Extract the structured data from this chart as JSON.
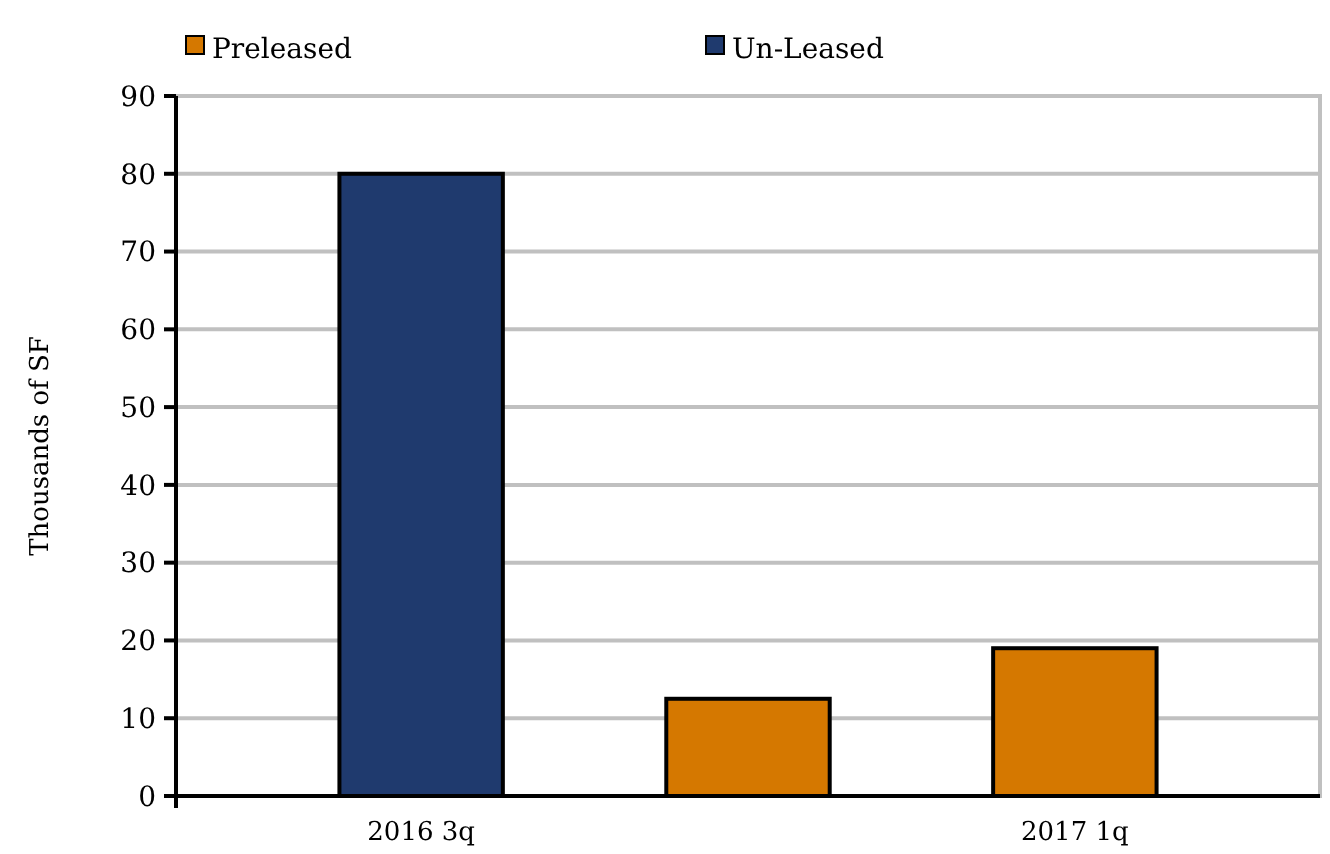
{
  "chart_data": {
    "type": "bar",
    "ylabel": "Thousands of SF",
    "categories": [
      "2016 3q",
      null,
      "2017 1q"
    ],
    "series": [
      {
        "name": "Preleased",
        "color": "#d57800",
        "values": [
          null,
          12.5,
          19
        ]
      },
      {
        "name": "Un-Leased",
        "color": "#1f3a6e",
        "values": [
          80,
          null,
          null
        ]
      }
    ],
    "ylim": [
      0,
      90
    ],
    "yticks": [
      0,
      10,
      20,
      30,
      40,
      50,
      60,
      70,
      80,
      90
    ],
    "grid": "y",
    "legend": "top"
  }
}
